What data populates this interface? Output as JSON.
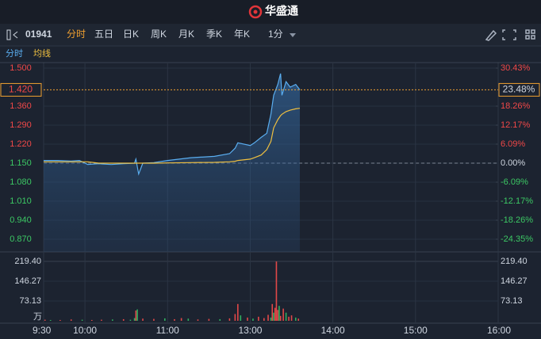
{
  "ui": {
    "app_name": "华盛通",
    "stock_code": "01941",
    "tabs": [
      "分时",
      "五日",
      "日K",
      "周K",
      "月K",
      "季K",
      "年K"
    ],
    "interval": "1分"
  },
  "chart_data": [
    {
      "type": "line",
      "x": [
        0,
        10,
        20,
        26,
        32,
        40,
        49,
        58,
        66,
        67,
        69,
        72,
        80,
        90,
        107,
        124,
        135,
        139,
        141,
        150,
        153,
        158,
        162,
        165,
        167,
        170,
        172,
        173,
        176,
        179,
        183,
        186
      ],
      "series": [
        {
          "name": "分时",
          "color": "#5aaef0",
          "values": [
            1.16,
            1.16,
            1.158,
            1.16,
            1.145,
            1.148,
            1.145,
            1.148,
            1.15,
            1.165,
            1.11,
            1.15,
            1.152,
            1.16,
            1.17,
            1.175,
            1.185,
            1.205,
            1.225,
            1.215,
            1.225,
            1.245,
            1.26,
            1.33,
            1.4,
            1.44,
            1.48,
            1.4,
            1.45,
            1.43,
            1.44,
            1.42
          ]
        },
        {
          "name": "均线",
          "color": "#f0c040",
          "values": [
            1.155,
            1.155,
            1.155,
            1.155,
            1.155,
            1.15,
            1.15,
            1.15,
            1.15,
            1.15,
            1.15,
            1.15,
            1.15,
            1.151,
            1.152,
            1.153,
            1.155,
            1.157,
            1.16,
            1.165,
            1.17,
            1.18,
            1.2,
            1.23,
            1.28,
            1.31,
            1.325,
            1.33,
            1.34,
            1.345,
            1.35,
            1.352
          ]
        }
      ],
      "xlim": [
        0,
        330
      ],
      "ylim": [
        0.87,
        1.5
      ],
      "yticks": [
        {
          "value": 1.5,
          "label": "1.500"
        },
        {
          "value": 1.36,
          "label": "1.360"
        },
        {
          "value": 1.29,
          "label": "1.290"
        },
        {
          "value": 1.22,
          "label": "1.220"
        },
        {
          "value": 1.15,
          "label": "1.150"
        },
        {
          "value": 1.08,
          "label": "1.080"
        },
        {
          "value": 1.01,
          "label": "1.010"
        },
        {
          "value": 0.94,
          "label": "0.940"
        },
        {
          "value": 0.87,
          "label": "0.870"
        }
      ],
      "y2lim": [
        -24.35,
        30.43
      ],
      "y2ticks": [
        {
          "value": 30.43,
          "label": "30.43%"
        },
        {
          "value": 18.26,
          "label": "18.26%"
        },
        {
          "value": 12.17,
          "label": "12.17%"
        },
        {
          "value": 6.09,
          "label": "6.09%"
        },
        {
          "value": 0,
          "label": "0.00%"
        },
        {
          "value": -6.09,
          "label": "-6.09%"
        },
        {
          "value": -12.17,
          "label": "-12.17%"
        },
        {
          "value": -18.26,
          "label": "-18.26%"
        },
        {
          "value": -24.35,
          "label": "-24.35%"
        }
      ],
      "last_price": {
        "value": 1.42,
        "label": "1.420"
      },
      "last_change": {
        "value": 23.48,
        "label": "23.48%"
      },
      "up_color": "#f04848",
      "down_color": "#3cc864",
      "flat_color": "#cfd6e0"
    },
    {
      "type": "bar",
      "x": [
        1,
        5,
        12,
        20,
        28,
        35,
        42,
        50,
        58,
        63,
        66,
        67,
        68,
        72,
        80,
        88,
        95,
        100,
        105,
        112,
        120,
        128,
        135,
        139,
        141,
        143,
        148,
        152,
        156,
        160,
        163,
        165,
        166,
        167,
        168,
        169,
        170,
        171,
        172,
        174,
        176,
        178,
        180,
        183,
        185
      ],
      "values": [
        4,
        3,
        3,
        5,
        4,
        3,
        4,
        5,
        6,
        4,
        10,
        38,
        42,
        8,
        7,
        9,
        6,
        10,
        8,
        5,
        7,
        6,
        9,
        25,
        62,
        20,
        12,
        8,
        15,
        10,
        22,
        12,
        62,
        30,
        48,
        219,
        40,
        55,
        18,
        45,
        30,
        15,
        20,
        12,
        8
      ],
      "bar_colors": [
        "#e04848",
        "#30b060",
        "#e04848",
        "#e04848",
        "#30b060",
        "#e04848",
        "#e04848",
        "#30b060",
        "#e04848",
        "#30b060",
        "#30b060",
        "#e04848",
        "#30b060",
        "#e04848",
        "#e04848",
        "#30b060",
        "#e04848",
        "#e04848",
        "#30b060",
        "#e04848",
        "#e04848",
        "#30b060",
        "#e04848",
        "#e04848",
        "#e04848",
        "#30b060",
        "#e04848",
        "#30b060",
        "#e04848",
        "#e04848",
        "#e04848",
        "#30b060",
        "#e04848",
        "#30b060",
        "#e04848",
        "#e04848",
        "#e04848",
        "#30b060",
        "#e04848",
        "#e04848",
        "#30b060",
        "#e04848",
        "#e04848",
        "#30b060",
        "#e04848"
      ],
      "xlim": [
        0,
        330
      ],
      "xticks": [
        {
          "value": 0,
          "label": "9:30"
        },
        {
          "value": 30,
          "label": "10:00"
        },
        {
          "value": 90,
          "label": "11:00"
        },
        {
          "value": 150,
          "label": "13:00"
        },
        {
          "value": 210,
          "label": "14:00"
        },
        {
          "value": 270,
          "label": "15:00"
        },
        {
          "value": 330,
          "label": "16:00"
        }
      ],
      "ylim": [
        0,
        219.4
      ],
      "yticks": [
        {
          "value": 219.4,
          "label": "219.40"
        },
        146.27,
        73.13
      ],
      "unit": "万"
    }
  ]
}
